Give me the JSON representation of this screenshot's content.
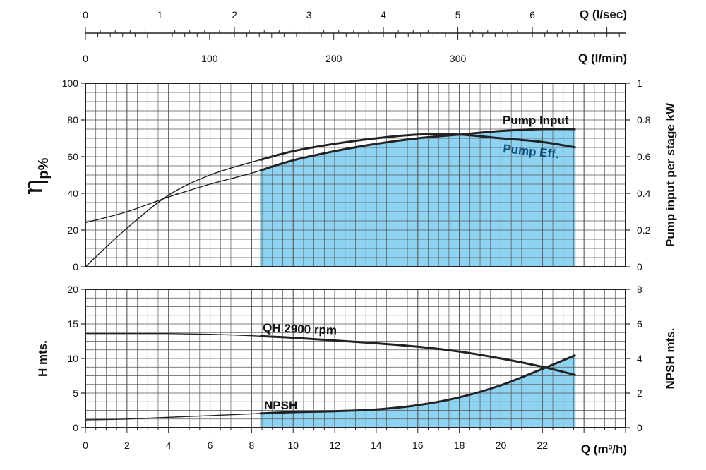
{
  "colors": {
    "shade": "#8fd3f2",
    "grid": "#555555",
    "curve": "#222222",
    "eff_label": "#0d4f7a"
  },
  "top_scale": {
    "q_lsec": {
      "label": "Q (l/sec)",
      "ticks": [
        "0",
        "1",
        "2",
        "3",
        "4",
        "5",
        "6"
      ],
      "range": [
        0,
        7.25
      ]
    },
    "q_lmin": {
      "label": "Q (l/min)",
      "ticks": [
        "0",
        "100",
        "200",
        "300"
      ],
      "range": [
        0,
        435
      ]
    }
  },
  "chart_data": [
    {
      "type": "line",
      "name": "efficiency-power",
      "x_range": [
        0,
        26
      ],
      "left_axis": {
        "label": "η",
        "label_sub": "p%",
        "ticks": [
          "0",
          "20",
          "40",
          "60",
          "80",
          "100"
        ],
        "range": [
          0,
          100
        ]
      },
      "right_axis": {
        "label": "Pump input per stage kW",
        "ticks": [
          "0",
          "0.2",
          "0.4",
          "0.6",
          "0.8",
          "1"
        ],
        "range": [
          0,
          1
        ]
      },
      "grid": true,
      "shaded_x_range": [
        8.4,
        23.6
      ],
      "series": [
        {
          "name": "Pump Input",
          "axis": "left",
          "x": [
            0,
            2,
            4,
            6,
            8,
            10,
            12,
            14,
            16,
            18,
            20,
            22,
            23.6
          ],
          "y": [
            24,
            30,
            38,
            45,
            51,
            58,
            63,
            67,
            70,
            72,
            74,
            75,
            75
          ]
        },
        {
          "name": "Pump Eff.",
          "axis": "left",
          "x": [
            0,
            2,
            4,
            6,
            8,
            10,
            12,
            14,
            16,
            18,
            20,
            22,
            23.6
          ],
          "y": [
            0,
            21,
            39,
            50,
            57,
            63,
            67,
            70,
            72,
            72,
            70,
            68,
            65
          ]
        }
      ]
    },
    {
      "type": "line",
      "name": "head-npsh",
      "x_label": "Q (m³/h)",
      "x_ticks": [
        "0",
        "2",
        "4",
        "6",
        "8",
        "10",
        "12",
        "14",
        "16",
        "18",
        "20",
        "22"
      ],
      "x_range": [
        0,
        26
      ],
      "left_axis": {
        "label": "H mts.",
        "ticks": [
          "0",
          "5",
          "10",
          "15",
          "20"
        ],
        "range": [
          0,
          20
        ]
      },
      "right_axis": {
        "label": "NPSH mts.",
        "ticks": [
          "0",
          "2",
          "4",
          "6",
          "8"
        ],
        "range": [
          0,
          8
        ]
      },
      "grid": true,
      "shaded_x_range": [
        8.4,
        23.6
      ],
      "series": [
        {
          "name": "QH 2900 rpm",
          "axis": "left",
          "x": [
            0,
            2,
            4,
            6,
            8,
            10,
            12,
            14,
            16,
            18,
            20,
            22,
            23.6
          ],
          "y": [
            13.6,
            13.6,
            13.6,
            13.5,
            13.3,
            13.0,
            12.6,
            12.2,
            11.7,
            11.0,
            10.0,
            8.8,
            7.6
          ]
        },
        {
          "name": "NPSH",
          "axis": "right",
          "x": [
            0,
            2,
            4,
            6,
            8,
            10,
            12,
            14,
            16,
            18,
            20,
            22,
            23.6
          ],
          "y": [
            0.45,
            0.5,
            0.6,
            0.7,
            0.8,
            0.9,
            0.95,
            1.05,
            1.3,
            1.75,
            2.45,
            3.4,
            4.2
          ]
        }
      ]
    }
  ]
}
